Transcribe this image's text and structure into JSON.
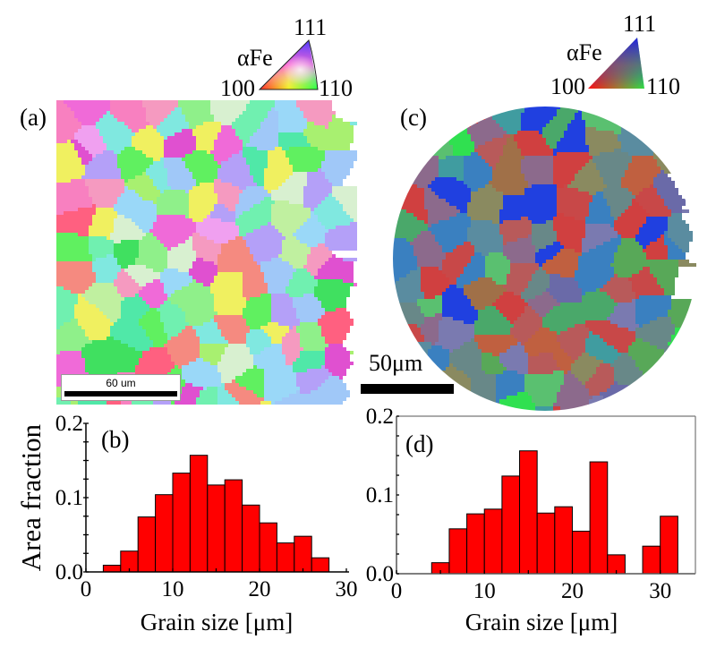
{
  "figure": {
    "panels": {
      "a": {
        "label": "(a)",
        "map_type": "EBSD IPF map (square)",
        "scale_bar_text": "60 um"
      },
      "b": {
        "label": "(b)"
      },
      "c": {
        "label": "(c)",
        "map_type": "EBSD IPF map (circular)",
        "scale_bar_text": "50μm"
      },
      "d": {
        "label": "(d)"
      }
    },
    "legends": [
      {
        "id": "legend-a",
        "phase": "αFe",
        "corner_top": "111",
        "corner_left": "100",
        "corner_right": "110",
        "colors": {
          "100": "#ff2020",
          "110": "#20ff40",
          "111": "#4a3cff"
        }
      },
      {
        "id": "legend-c",
        "phase": "αFe",
        "corner_top": "111",
        "corner_left": "100",
        "corner_right": "110",
        "colors": {
          "100": "#ff1010",
          "110": "#30e040",
          "111": "#2020e0"
        }
      }
    ],
    "bar_color": "#ff0000",
    "bar_edge_color": "#000000"
  },
  "chart_data": [
    {
      "type": "bar",
      "panel": "b",
      "title": "(b)",
      "xlabel": "Grain size [μm]",
      "ylabel": "Area fraction",
      "xlim": [
        0,
        30
      ],
      "ylim": [
        0,
        0.2
      ],
      "xticks": [
        "0",
        "10",
        "20",
        "30"
      ],
      "yticks": [
        "0.0",
        "0.1",
        "0.2"
      ],
      "bin_width": 2,
      "bin_starts": [
        2,
        4,
        6,
        8,
        10,
        12,
        14,
        16,
        18,
        20,
        22,
        24,
        26
      ],
      "values": [
        0.009,
        0.028,
        0.074,
        0.104,
        0.133,
        0.157,
        0.117,
        0.124,
        0.09,
        0.066,
        0.039,
        0.048,
        0.019
      ],
      "grid": false,
      "frame": "left-bottom axes only"
    },
    {
      "type": "bar",
      "panel": "d",
      "title": "(d)",
      "xlabel": "Grain size [μm]",
      "ylabel": "",
      "xlim": [
        0,
        34
      ],
      "ylim": [
        0,
        0.2
      ],
      "xticks": [
        "0",
        "10",
        "20",
        "30"
      ],
      "yticks": [
        "0.0",
        "0.1",
        "0.2"
      ],
      "bin_width": 2,
      "bin_starts": [
        4,
        6,
        8,
        10,
        12,
        14,
        16,
        18,
        20,
        22,
        24,
        26,
        28,
        30
      ],
      "values": [
        0.014,
        0.057,
        0.076,
        0.082,
        0.124,
        0.156,
        0.077,
        0.085,
        0.054,
        0.142,
        0.024,
        0.0,
        0.035,
        0.073
      ],
      "grid": false,
      "frame": "boxed"
    }
  ]
}
